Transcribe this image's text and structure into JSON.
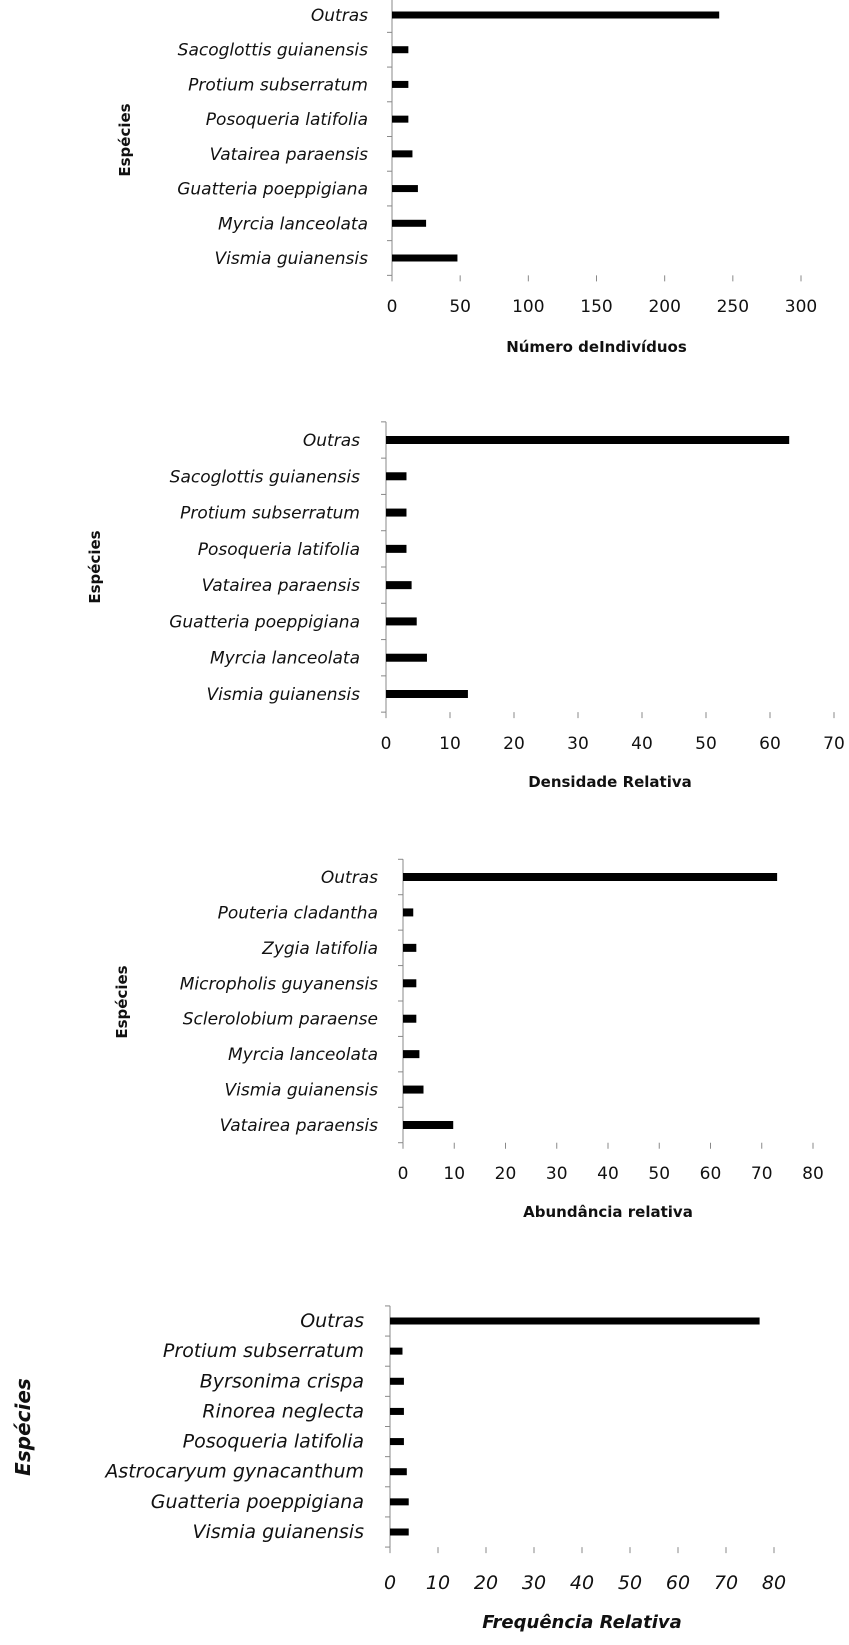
{
  "chart_data": [
    {
      "type": "bar",
      "orientation": "horizontal",
      "categories": [
        "Outras",
        "Sacoglottis guianensis",
        "Protium subserratum",
        "Posoqueria latifolia",
        "Vatairea paraensis",
        "Guatteria poeppigiana",
        "Myrcia lanceolata",
        "Vismia guianensis"
      ],
      "values": [
        240,
        12,
        12,
        12,
        15,
        19,
        25,
        48
      ],
      "xlabel": "Número deIndivíduos",
      "ylabel": "Espécies",
      "xlim": [
        0,
        300
      ],
      "xticks": [
        "0",
        "50",
        "100",
        "150",
        "200",
        "250",
        "300"
      ],
      "grid": false,
      "bar_color": "#000000"
    },
    {
      "type": "bar",
      "orientation": "horizontal",
      "categories": [
        "Outras",
        "Sacoglottis guianensis",
        "Protium subserratum",
        "Posoqueria latifolia",
        "Vatairea paraensis",
        "Guatteria poeppigiana",
        "Myrcia lanceolata",
        "Vismia guianensis"
      ],
      "values": [
        63,
        3.2,
        3.2,
        3.2,
        4,
        4.8,
        6.4,
        12.8
      ],
      "xlabel": "Densidade Relativa",
      "ylabel": "Espécies",
      "xlim": [
        0,
        70
      ],
      "xticks": [
        "0",
        "10",
        "20",
        "30",
        "40",
        "50",
        "60",
        "70"
      ],
      "grid": false,
      "bar_color": "#000000"
    },
    {
      "type": "bar",
      "orientation": "horizontal",
      "categories": [
        "Outras",
        "Pouteria cladantha",
        "Zygia latifolia",
        "Micropholis guyanensis",
        "Sclerolobium paraense",
        "Myrcia lanceolata",
        "Vismia guianensis",
        "Vatairea paraensis"
      ],
      "values": [
        73,
        2,
        2.6,
        2.6,
        2.6,
        3.2,
        4,
        9.8
      ],
      "xlabel": "Abundância relativa",
      "ylabel": "Espécies",
      "xlim": [
        0,
        80
      ],
      "xticks": [
        "0",
        "10",
        "20",
        "30",
        "40",
        "50",
        "60",
        "70",
        "80"
      ],
      "grid": false,
      "bar_color": "#000000"
    },
    {
      "type": "bar",
      "orientation": "horizontal",
      "categories": [
        "Outras",
        "Protium subserratum",
        "Byrsonima crispa",
        "Rinorea neglecta",
        "Posoqueria latifolia",
        "Astrocaryum gynacanthum",
        "Guatteria poeppigiana",
        "Vismia guianensis"
      ],
      "values": [
        77,
        2.6,
        2.9,
        2.9,
        2.9,
        3.5,
        3.9,
        3.9
      ],
      "xlabel": "Frequência Relativa",
      "ylabel": "Espécies",
      "xlim": [
        0,
        80
      ],
      "xticks": [
        "0",
        "10",
        "20",
        "30",
        "40",
        "50",
        "60",
        "70",
        "80"
      ],
      "grid": false,
      "bar_color": "#000000"
    }
  ]
}
